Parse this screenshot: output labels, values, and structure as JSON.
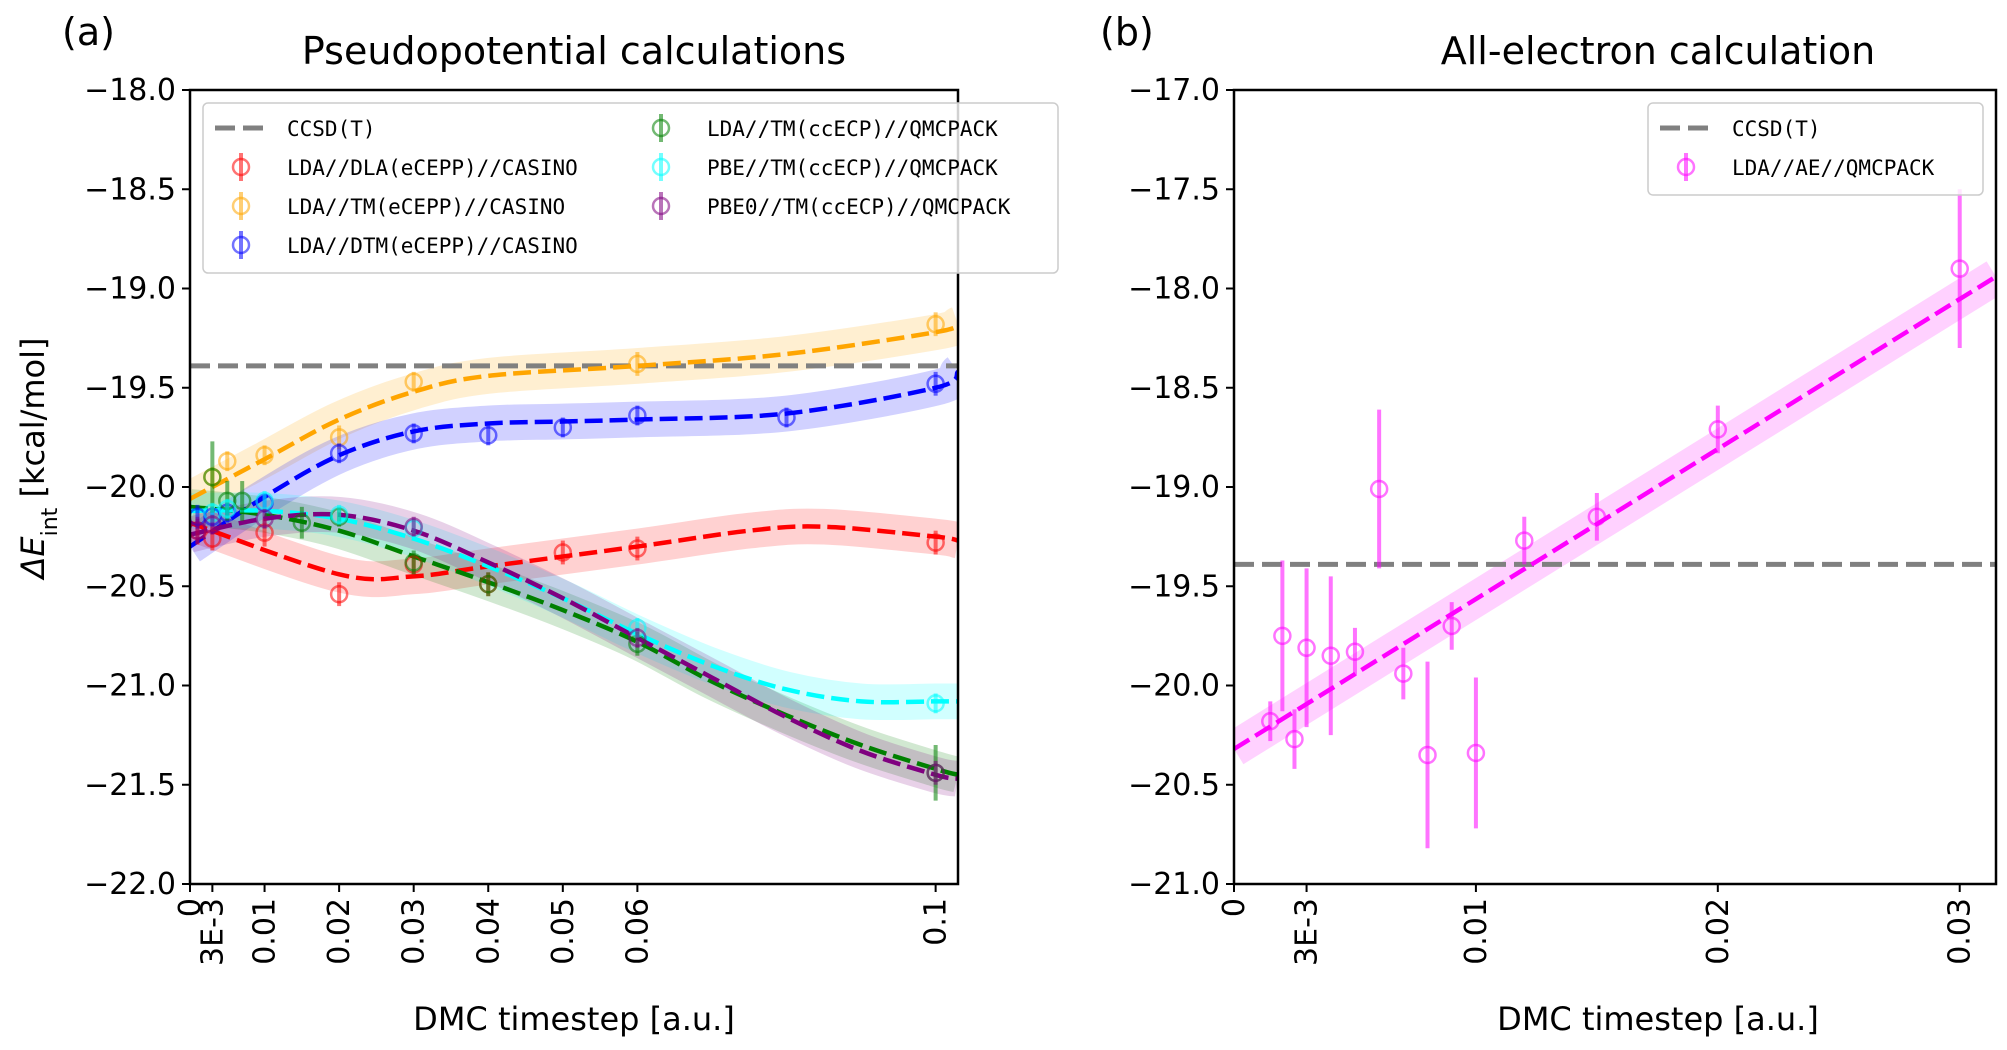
{
  "colors": {
    "ccsdt": "#808080",
    "LDA_DLA_CASINO": "#ff0000",
    "LDA_TM_CASINO": "#ffa500",
    "LDA_DTM_CASINO": "#0000ff",
    "LDA_TMccECP_QMCPACK": "#008000",
    "PBE_TMccECP_QMCPACK": "#00ffff",
    "PBE0_TMccECP_QMCPACK": "#800080",
    "LDA_AE_QMCPACK": "#ff00ff"
  },
  "chart_data": [
    {
      "type": "scatter",
      "panel_label": "(a)",
      "title": "Pseudopotential calculations",
      "xlabel": "DMC timestep [a.u.]",
      "ylabel_main": "ΔE",
      "ylabel_sub": "int",
      "ylabel_units": " [kcal/mol]",
      "xlim": [
        0,
        0.103
      ],
      "ylim": [
        -22.0,
        -18.0
      ],
      "x_ticks": [
        {
          "value": 0,
          "label": "0"
        },
        {
          "value": 0.003,
          "label": "3E-3"
        },
        {
          "value": 0.01,
          "label": "0.01"
        },
        {
          "value": 0.02,
          "label": "0.02"
        },
        {
          "value": 0.03,
          "label": "0.03"
        },
        {
          "value": 0.04,
          "label": "0.04"
        },
        {
          "value": 0.05,
          "label": "0.05"
        },
        {
          "value": 0.06,
          "label": "0.06"
        },
        {
          "value": 0.1,
          "label": "0.1"
        }
      ],
      "y_ticks": [
        {
          "value": -18.0,
          "label": "−18.0"
        },
        {
          "value": -18.5,
          "label": "−18.5"
        },
        {
          "value": -19.0,
          "label": "−19.0"
        },
        {
          "value": -19.5,
          "label": "−19.5"
        },
        {
          "value": -20.0,
          "label": "−20.0"
        },
        {
          "value": -20.5,
          "label": "−20.5"
        },
        {
          "value": -21.0,
          "label": "−21.0"
        },
        {
          "value": -21.5,
          "label": "−21.5"
        },
        {
          "value": -22.0,
          "label": "−22.0"
        }
      ],
      "reference": {
        "name": "CCSD(T)",
        "value": -19.39,
        "color_key": "ccsdt"
      },
      "legend_position": "top",
      "legend_columns": 2,
      "series": [
        {
          "name": "LDA//DLA(eCEPP)//CASINO",
          "color_key": "LDA_DLA_CASINO",
          "x": [
            0.001,
            0.003,
            0.01,
            0.02,
            0.03,
            0.04,
            0.05,
            0.06,
            0.1
          ],
          "y": [
            -20.22,
            -20.26,
            -20.23,
            -20.54,
            -20.39,
            -20.49,
            -20.33,
            -20.31,
            -20.28
          ],
          "err": [
            0.07,
            0.06,
            0.07,
            0.06,
            0.05,
            0.06,
            0.06,
            0.06,
            0.06
          ],
          "fit": {
            "x": [
              0,
              0.02,
              0.03,
              0.04,
              0.06,
              0.075,
              0.085,
              0.1,
              0.103
            ],
            "y": [
              -20.18,
              -20.44,
              -20.45,
              -20.4,
              -20.3,
              -20.22,
              -20.2,
              -20.25,
              -20.27
            ]
          }
        },
        {
          "name": "LDA//TM(eCEPP)//CASINO",
          "color_key": "LDA_TM_CASINO",
          "x": [
            0.003,
            0.005,
            0.01,
            0.02,
            0.03,
            0.06,
            0.1
          ],
          "y": [
            -19.95,
            -19.87,
            -19.84,
            -19.75,
            -19.47,
            -19.38,
            -19.18
          ],
          "err": [
            0.05,
            0.05,
            0.05,
            0.06,
            0.05,
            0.06,
            0.06
          ],
          "fit": {
            "x": [
              0,
              0.01,
              0.02,
              0.03,
              0.04,
              0.06,
              0.08,
              0.1,
              0.103
            ],
            "y": [
              -20.06,
              -19.86,
              -19.66,
              -19.52,
              -19.44,
              -19.39,
              -19.33,
              -19.22,
              -19.18
            ]
          }
        },
        {
          "name": "LDA//DTM(eCEPP)//CASINO",
          "color_key": "LDA_DTM_CASINO",
          "x": [
            0.001,
            0.003,
            0.005,
            0.01,
            0.02,
            0.03,
            0.04,
            0.05,
            0.06,
            0.08,
            0.1
          ],
          "y": [
            -20.15,
            -20.15,
            -20.13,
            -20.08,
            -19.83,
            -19.73,
            -19.74,
            -19.7,
            -19.64,
            -19.65,
            -19.48
          ],
          "err": [
            0.06,
            0.05,
            0.05,
            0.05,
            0.05,
            0.05,
            0.05,
            0.05,
            0.05,
            0.05,
            0.06
          ],
          "fit": {
            "x": [
              0,
              0.01,
              0.02,
              0.03,
              0.04,
              0.05,
              0.06,
              0.08,
              0.1,
              0.103
            ],
            "y": [
              -20.3,
              -20.05,
              -19.84,
              -19.72,
              -19.68,
              -19.67,
              -19.66,
              -19.63,
              -19.5,
              -19.42
            ]
          }
        },
        {
          "name": "LDA//TM(ccECP)//QMCPACK",
          "color_key": "LDA_TMccECP_QMCPACK",
          "x": [
            0.003,
            0.005,
            0.007,
            0.015,
            0.02,
            0.03,
            0.04,
            0.06,
            0.1
          ],
          "y": [
            -19.95,
            -20.07,
            -20.07,
            -20.18,
            -20.15,
            -20.38,
            -20.49,
            -20.79,
            -21.44
          ],
          "err": [
            0.18,
            0.1,
            0.1,
            0.08,
            0.05,
            0.06,
            0.06,
            0.06,
            0.14
          ],
          "fit": {
            "x": [
              0,
              0.01,
              0.02,
              0.03,
              0.04,
              0.05,
              0.06,
              0.07,
              0.08,
              0.09,
              0.1,
              0.103
            ],
            "y": [
              -20.1,
              -20.14,
              -20.22,
              -20.35,
              -20.48,
              -20.62,
              -20.78,
              -20.98,
              -21.15,
              -21.3,
              -21.42,
              -21.45
            ]
          }
        },
        {
          "name": "PBE//TM(ccECP)//QMCPACK",
          "color_key": "PBE_TMccECP_QMCPACK",
          "x": [
            0.003,
            0.005,
            0.01,
            0.02,
            0.03,
            0.06,
            0.1
          ],
          "y": [
            -20.13,
            -20.11,
            -20.07,
            -20.14,
            -20.21,
            -20.71,
            -21.09
          ],
          "err": [
            0.05,
            0.05,
            0.05,
            0.05,
            0.05,
            0.05,
            0.05
          ],
          "fit": {
            "x": [
              0,
              0.01,
              0.02,
              0.03,
              0.04,
              0.05,
              0.06,
              0.07,
              0.08,
              0.09,
              0.1,
              0.103
            ],
            "y": [
              -20.12,
              -20.12,
              -20.16,
              -20.26,
              -20.4,
              -20.56,
              -20.74,
              -20.9,
              -21.02,
              -21.08,
              -21.08,
              -21.08
            ]
          }
        },
        {
          "name": "PBE0//TM(ccECP)//QMCPACK",
          "color_key": "PBE0_TMccECP_QMCPACK",
          "x": [
            0.001,
            0.003,
            0.01,
            0.03,
            0.06,
            0.1
          ],
          "y": [
            -20.22,
            -20.19,
            -20.16,
            -20.2,
            -20.76,
            -21.44
          ],
          "err": [
            0.06,
            0.05,
            0.05,
            0.05,
            0.05,
            0.06
          ],
          "fit": {
            "x": [
              0,
              0.01,
              0.02,
              0.03,
              0.04,
              0.05,
              0.06,
              0.07,
              0.08,
              0.09,
              0.1,
              0.103
            ],
            "y": [
              -20.24,
              -20.16,
              -20.14,
              -20.22,
              -20.38,
              -20.56,
              -20.76,
              -20.96,
              -21.16,
              -21.33,
              -21.45,
              -21.47
            ]
          }
        }
      ]
    },
    {
      "type": "scatter",
      "panel_label": "(b)",
      "title": "All-electron calculation",
      "xlabel": "DMC timestep [a.u.]",
      "xlim": [
        0,
        0.0315
      ],
      "ylim": [
        -21.0,
        -17.0
      ],
      "x_ticks": [
        {
          "value": 0,
          "label": "0"
        },
        {
          "value": 0.003,
          "label": "3E-3"
        },
        {
          "value": 0.01,
          "label": "0.01"
        },
        {
          "value": 0.02,
          "label": "0.02"
        },
        {
          "value": 0.03,
          "label": "0.03"
        }
      ],
      "y_ticks": [
        {
          "value": -17.0,
          "label": "−17.0"
        },
        {
          "value": -17.5,
          "label": "−17.5"
        },
        {
          "value": -18.0,
          "label": "−18.0"
        },
        {
          "value": -18.5,
          "label": "−18.5"
        },
        {
          "value": -19.0,
          "label": "−19.0"
        },
        {
          "value": -19.5,
          "label": "−19.5"
        },
        {
          "value": -20.0,
          "label": "−20.0"
        },
        {
          "value": -20.5,
          "label": "−20.5"
        },
        {
          "value": -21.0,
          "label": "−21.0"
        }
      ],
      "reference": {
        "name": "CCSD(T)",
        "value": -19.39,
        "color_key": "ccsdt"
      },
      "legend_position": "top-right",
      "legend_columns": 1,
      "series": [
        {
          "name": "LDA//AE//QMCPACK",
          "color_key": "LDA_AE_QMCPACK",
          "x": [
            0.0015,
            0.002,
            0.0025,
            0.003,
            0.004,
            0.005,
            0.006,
            0.007,
            0.008,
            0.009,
            0.01,
            0.012,
            0.015,
            0.02,
            0.03
          ],
          "y": [
            -20.18,
            -19.75,
            -20.27,
            -19.81,
            -19.85,
            -19.83,
            -19.01,
            -19.94,
            -20.35,
            -19.7,
            -20.34,
            -19.27,
            -19.15,
            -18.71,
            -17.9
          ],
          "err": [
            0.1,
            0.38,
            0.15,
            0.4,
            0.4,
            0.12,
            0.4,
            0.13,
            0.47,
            0.12,
            0.38,
            0.12,
            0.12,
            0.12,
            0.4
          ],
          "fit": {
            "x": [
              0,
              0.0315
            ],
            "y": [
              -20.32,
              -17.94
            ]
          }
        }
      ]
    }
  ]
}
